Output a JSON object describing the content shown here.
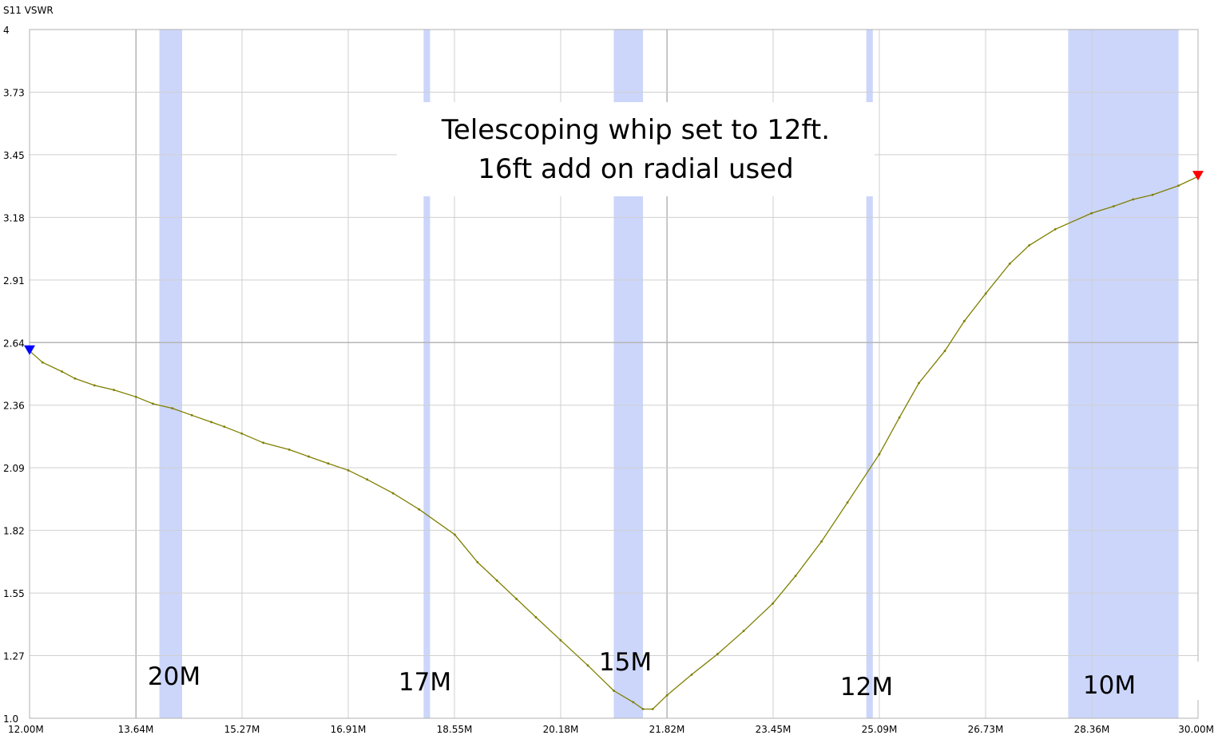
{
  "chart_data": {
    "type": "line",
    "ylabel": "S11 VSWR",
    "xlim": [
      12.0,
      30.0
    ],
    "ylim": [
      1.0,
      4.0
    ],
    "x_tick_labels": [
      "12.00M",
      "13.64M",
      "15.27M",
      "16.91M",
      "18.55M",
      "20.18M",
      "21.82M",
      "23.45M",
      "25.09M",
      "26.73M",
      "28.36M",
      "30.00M"
    ],
    "y_tick_labels": [
      "1.0",
      "1.27",
      "1.55",
      "1.82",
      "2.09",
      "2.36",
      "2.64",
      "2.91",
      "3.18",
      "3.45",
      "3.73",
      "4"
    ],
    "grid": true,
    "series": [
      {
        "color": "#7f7f00",
        "x": [
          12.0,
          12.2,
          12.5,
          12.7,
          13.0,
          13.3,
          13.64,
          13.9,
          14.2,
          14.5,
          14.8,
          15.0,
          15.27,
          15.6,
          16.0,
          16.3,
          16.6,
          16.91,
          17.2,
          17.6,
          18.0,
          18.55,
          18.9,
          19.2,
          19.5,
          19.8,
          20.18,
          20.6,
          21.0,
          21.3,
          21.45,
          21.6,
          21.82,
          22.2,
          22.6,
          23.0,
          23.45,
          23.8,
          24.2,
          24.6,
          25.09,
          25.4,
          25.7,
          26.1,
          26.4,
          26.73,
          27.1,
          27.4,
          27.8,
          28.36,
          28.7,
          29.0,
          29.3,
          29.7,
          30.0
        ],
        "y": [
          2.6,
          2.55,
          2.51,
          2.48,
          2.45,
          2.43,
          2.4,
          2.37,
          2.35,
          2.32,
          2.29,
          2.27,
          2.24,
          2.2,
          2.17,
          2.14,
          2.11,
          2.08,
          2.04,
          1.98,
          1.91,
          1.8,
          1.68,
          1.6,
          1.52,
          1.44,
          1.34,
          1.23,
          1.12,
          1.07,
          1.04,
          1.04,
          1.1,
          1.19,
          1.28,
          1.38,
          1.5,
          1.62,
          1.77,
          1.94,
          2.15,
          2.31,
          2.46,
          2.6,
          2.73,
          2.85,
          2.98,
          3.06,
          3.13,
          3.2,
          3.23,
          3.26,
          3.28,
          3.32,
          3.36
        ]
      }
    ],
    "bands": [
      {
        "label": "20M",
        "x_start": 14.0,
        "x_end": 14.35
      },
      {
        "label": "17M",
        "x_start": 18.07,
        "x_end": 18.17
      },
      {
        "label": "15M",
        "x_start": 21.0,
        "x_end": 21.45
      },
      {
        "label": "12M",
        "x_start": 24.89,
        "x_end": 24.99
      },
      {
        "label": "10M",
        "x_start": 28.0,
        "x_end": 29.7
      }
    ],
    "markers": [
      {
        "x": 12.0,
        "y": 2.6,
        "color": "#0000ff",
        "shape": "triangle-down"
      },
      {
        "x": 30.0,
        "y": 3.36,
        "color": "#ff0000",
        "shape": "triangle-down"
      }
    ],
    "annotation": {
      "lines": [
        "Telescoping whip set to 12ft.",
        "16ft add on radial used"
      ]
    },
    "band_color": "#ccd6fa"
  }
}
